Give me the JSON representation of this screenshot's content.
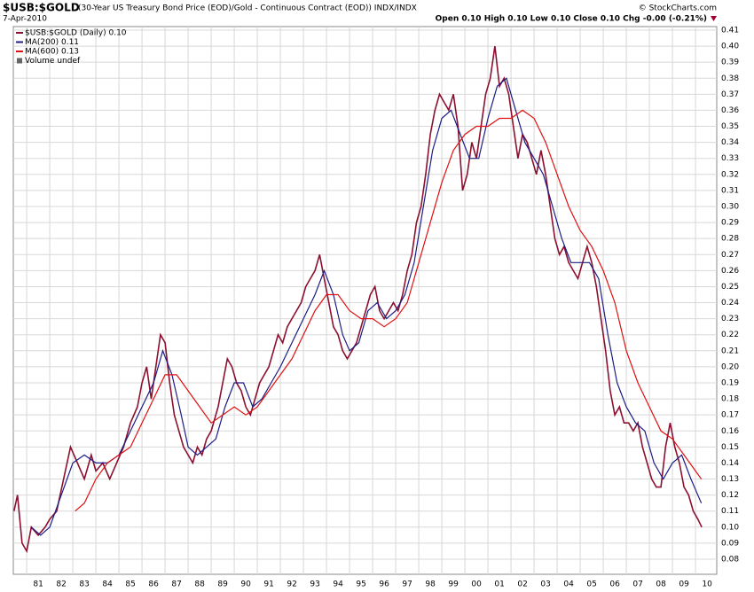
{
  "chart_data": {
    "type": "line",
    "title": "$USB:$GOLD",
    "subtitle": "(30-Year US Treasury Bond Price (EOD)/Gold - Continuous Contract (EOD)) INDX/INDX",
    "date": "7-Apr-2010",
    "source": "© StockCharts.com",
    "quote": "Open 0.10  High 0.10  Low 0.10  Close 0.10  Chg -0.00 (-0.21%)",
    "volume_label": "Volume undef",
    "xlim": [
      1980.42,
      2010.92
    ],
    "ylim": [
      0.0706,
      0.4122
    ],
    "grid": true,
    "legend": "top-left",
    "xticks": [
      {
        "value": 1981,
        "label": "81"
      },
      {
        "value": 1982,
        "label": "82"
      },
      {
        "value": 1983,
        "label": "83"
      },
      {
        "value": 1984,
        "label": "84"
      },
      {
        "value": 1985,
        "label": "85"
      },
      {
        "value": 1986,
        "label": "86"
      },
      {
        "value": 1987,
        "label": "87"
      },
      {
        "value": 1988,
        "label": "88"
      },
      {
        "value": 1989,
        "label": "89"
      },
      {
        "value": 1990,
        "label": "90"
      },
      {
        "value": 1991,
        "label": "91"
      },
      {
        "value": 1992,
        "label": "92"
      },
      {
        "value": 1993,
        "label": "93"
      },
      {
        "value": 1994,
        "label": "94"
      },
      {
        "value": 1995,
        "label": "95"
      },
      {
        "value": 1996,
        "label": "96"
      },
      {
        "value": 1997,
        "label": "97"
      },
      {
        "value": 1998,
        "label": "98"
      },
      {
        "value": 1999,
        "label": "99"
      },
      {
        "value": 2000,
        "label": "00"
      },
      {
        "value": 2001,
        "label": "01"
      },
      {
        "value": 2002,
        "label": "02"
      },
      {
        "value": 2003,
        "label": "03"
      },
      {
        "value": 2004,
        "label": "04"
      },
      {
        "value": 2005,
        "label": "05"
      },
      {
        "value": 2006,
        "label": "06"
      },
      {
        "value": 2007,
        "label": "07"
      },
      {
        "value": 2008,
        "label": "08"
      },
      {
        "value": 2009,
        "label": "09"
      },
      {
        "value": 2010,
        "label": "10"
      }
    ],
    "yticks": [
      0.08,
      0.09,
      {
        "value": 0.1,
        "label": "0.10"
      },
      0.11,
      0.12,
      0.13,
      0.14,
      0.15,
      0.16,
      0.17,
      0.18,
      0.19,
      {
        "value": 0.2,
        "label": "0.20"
      },
      0.21,
      0.22,
      0.23,
      0.24,
      0.25,
      0.26,
      0.27,
      0.28,
      0.29,
      {
        "value": 0.3,
        "label": "0.30"
      },
      0.31,
      0.32,
      0.33,
      0.34,
      0.35,
      0.36,
      0.37,
      0.38,
      0.39,
      {
        "value": 0.4,
        "label": "0.40"
      },
      0.41
    ],
    "series": [
      {
        "name": "$USB:$GOLD (Daily) 0.10",
        "color": "#8b1030",
        "x": [
          1980.45,
          1980.6,
          1980.8,
          1981.0,
          1981.2,
          1981.5,
          1981.8,
          1982.0,
          1982.3,
          1982.6,
          1982.9,
          1983.2,
          1983.5,
          1983.8,
          1984.0,
          1984.3,
          1984.6,
          1984.9,
          1985.2,
          1985.5,
          1985.8,
          1986.0,
          1986.2,
          1986.4,
          1986.6,
          1986.8,
          1987.0,
          1987.2,
          1987.4,
          1987.6,
          1987.8,
          1988.0,
          1988.2,
          1988.4,
          1988.6,
          1988.8,
          1989.0,
          1989.3,
          1989.5,
          1989.7,
          1989.9,
          1990.1,
          1990.3,
          1990.5,
          1990.7,
          1990.9,
          1991.1,
          1991.3,
          1991.5,
          1991.7,
          1991.9,
          1992.1,
          1992.3,
          1992.5,
          1992.7,
          1992.9,
          1993.1,
          1993.3,
          1993.5,
          1993.7,
          1993.9,
          1994.1,
          1994.3,
          1994.5,
          1994.7,
          1994.9,
          1995.1,
          1995.3,
          1995.5,
          1995.7,
          1995.9,
          1996.1,
          1996.3,
          1996.5,
          1996.7,
          1996.9,
          1997.1,
          1997.3,
          1997.5,
          1997.7,
          1997.9,
          1998.1,
          1998.3,
          1998.5,
          1998.7,
          1998.9,
          1999.1,
          1999.3,
          1999.5,
          1999.7,
          1999.9,
          2000.1,
          2000.3,
          2000.5,
          2000.7,
          2000.9,
          2001.1,
          2001.3,
          2001.5,
          2001.7,
          2001.9,
          2002.1,
          2002.3,
          2002.5,
          2002.7,
          2002.9,
          2003.1,
          2003.3,
          2003.5,
          2003.7,
          2003.9,
          2004.1,
          2004.3,
          2004.5,
          2004.7,
          2004.9,
          2005.1,
          2005.3,
          2005.5,
          2005.7,
          2005.9,
          2006.1,
          2006.3,
          2006.5,
          2006.7,
          2006.9,
          2007.1,
          2007.3,
          2007.5,
          2007.7,
          2007.9,
          2008.1,
          2008.3,
          2008.5,
          2008.7,
          2008.9,
          2009.1,
          2009.3,
          2009.5,
          2009.7,
          2009.9,
          2010.1,
          2010.27
        ],
        "values": [
          0.11,
          0.12,
          0.09,
          0.085,
          0.1,
          0.095,
          0.1,
          0.105,
          0.11,
          0.13,
          0.15,
          0.14,
          0.13,
          0.145,
          0.135,
          0.14,
          0.13,
          0.14,
          0.15,
          0.165,
          0.175,
          0.19,
          0.2,
          0.18,
          0.2,
          0.22,
          0.215,
          0.19,
          0.17,
          0.16,
          0.15,
          0.145,
          0.14,
          0.15,
          0.145,
          0.155,
          0.16,
          0.175,
          0.19,
          0.205,
          0.2,
          0.19,
          0.185,
          0.175,
          0.17,
          0.18,
          0.19,
          0.195,
          0.2,
          0.21,
          0.22,
          0.215,
          0.225,
          0.23,
          0.235,
          0.24,
          0.25,
          0.255,
          0.26,
          0.27,
          0.255,
          0.24,
          0.225,
          0.22,
          0.21,
          0.205,
          0.21,
          0.215,
          0.225,
          0.235,
          0.245,
          0.25,
          0.235,
          0.23,
          0.235,
          0.24,
          0.235,
          0.245,
          0.26,
          0.27,
          0.29,
          0.3,
          0.32,
          0.345,
          0.36,
          0.37,
          0.365,
          0.36,
          0.37,
          0.35,
          0.31,
          0.32,
          0.34,
          0.33,
          0.35,
          0.37,
          0.38,
          0.4,
          0.375,
          0.38,
          0.37,
          0.35,
          0.33,
          0.345,
          0.34,
          0.33,
          0.32,
          0.335,
          0.32,
          0.3,
          0.28,
          0.27,
          0.275,
          0.265,
          0.26,
          0.255,
          0.265,
          0.275,
          0.265,
          0.25,
          0.23,
          0.21,
          0.185,
          0.17,
          0.175,
          0.165,
          0.165,
          0.16,
          0.165,
          0.15,
          0.14,
          0.13,
          0.125,
          0.125,
          0.15,
          0.165,
          0.15,
          0.14,
          0.125,
          0.12,
          0.11,
          0.105,
          0.1
        ]
      },
      {
        "name": "MA(200) 0.11",
        "color": "#1c1c84",
        "x": [
          1981.2,
          1981.6,
          1982.0,
          1982.5,
          1983.0,
          1983.5,
          1984.0,
          1984.5,
          1985.0,
          1985.5,
          1986.0,
          1986.5,
          1986.9,
          1987.3,
          1987.7,
          1988.0,
          1988.4,
          1988.8,
          1989.2,
          1989.6,
          1990.0,
          1990.4,
          1990.8,
          1991.2,
          1991.6,
          1992.0,
          1992.5,
          1993.0,
          1993.5,
          1993.9,
          1994.3,
          1994.7,
          1995.0,
          1995.4,
          1995.8,
          1996.2,
          1996.6,
          1997.0,
          1997.4,
          1997.8,
          1998.2,
          1998.6,
          1999.0,
          1999.4,
          1999.8,
          2000.2,
          2000.6,
          2001.0,
          2001.4,
          2001.8,
          2002.2,
          2002.6,
          2003.0,
          2003.4,
          2003.8,
          2004.2,
          2004.6,
          2005.0,
          2005.4,
          2005.8,
          2006.2,
          2006.6,
          2007.0,
          2007.4,
          2007.8,
          2008.2,
          2008.6,
          2009.0,
          2009.4,
          2009.8,
          2010.25
        ],
        "values": [
          0.1,
          0.095,
          0.1,
          0.12,
          0.14,
          0.145,
          0.14,
          0.14,
          0.145,
          0.16,
          0.175,
          0.19,
          0.21,
          0.195,
          0.17,
          0.15,
          0.145,
          0.15,
          0.155,
          0.175,
          0.19,
          0.19,
          0.175,
          0.18,
          0.19,
          0.2,
          0.215,
          0.23,
          0.245,
          0.26,
          0.245,
          0.22,
          0.21,
          0.215,
          0.235,
          0.24,
          0.23,
          0.235,
          0.245,
          0.265,
          0.3,
          0.335,
          0.355,
          0.36,
          0.345,
          0.33,
          0.33,
          0.355,
          0.375,
          0.38,
          0.36,
          0.34,
          0.33,
          0.32,
          0.3,
          0.28,
          0.265,
          0.265,
          0.265,
          0.255,
          0.22,
          0.19,
          0.175,
          0.165,
          0.16,
          0.14,
          0.13,
          0.14,
          0.145,
          0.13,
          0.115
        ]
      },
      {
        "name": "MA(600) 0.13",
        "color": "#e01010",
        "x": [
          1983.1,
          1983.5,
          1984.0,
          1984.5,
          1985.0,
          1985.5,
          1986.0,
          1986.5,
          1987.0,
          1987.5,
          1988.0,
          1988.5,
          1989.0,
          1989.5,
          1990.0,
          1990.5,
          1991.0,
          1991.5,
          1992.0,
          1992.5,
          1993.0,
          1993.5,
          1994.0,
          1994.5,
          1995.0,
          1995.5,
          1996.0,
          1996.5,
          1997.0,
          1997.5,
          1998.0,
          1998.5,
          1999.0,
          1999.5,
          2000.0,
          2000.5,
          2001.0,
          2001.5,
          2002.0,
          2002.5,
          2003.0,
          2003.5,
          2004.0,
          2004.5,
          2005.0,
          2005.5,
          2006.0,
          2006.5,
          2007.0,
          2007.5,
          2008.0,
          2008.5,
          2009.0,
          2009.5,
          2010.25
        ],
        "values": [
          0.11,
          0.115,
          0.13,
          0.14,
          0.145,
          0.15,
          0.165,
          0.18,
          0.195,
          0.195,
          0.185,
          0.175,
          0.165,
          0.17,
          0.175,
          0.17,
          0.175,
          0.185,
          0.195,
          0.205,
          0.22,
          0.235,
          0.245,
          0.245,
          0.235,
          0.23,
          0.23,
          0.225,
          0.23,
          0.24,
          0.265,
          0.29,
          0.315,
          0.335,
          0.345,
          0.35,
          0.35,
          0.355,
          0.355,
          0.36,
          0.355,
          0.34,
          0.32,
          0.3,
          0.285,
          0.275,
          0.26,
          0.24,
          0.21,
          0.19,
          0.175,
          0.16,
          0.155,
          0.145,
          0.13
        ]
      }
    ]
  }
}
